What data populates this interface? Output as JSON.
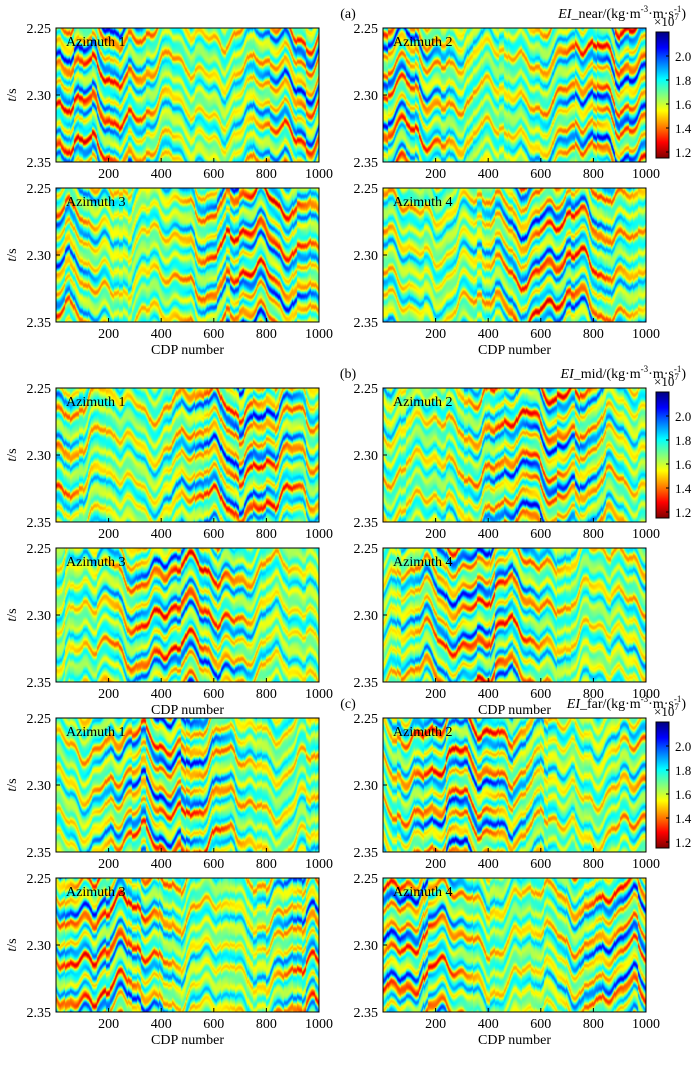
{
  "figure": {
    "xlabel": "CDP number",
    "ylabel_main": "t",
    "ylabel_unit": "/s",
    "colorbar_multiplier": "×10",
    "colorbar_exponent": "7"
  },
  "colors": {
    "colormap": [
      "#000080",
      "#0000ff",
      "#0080ff",
      "#00ffff",
      "#80ff80",
      "#ffff00",
      "#ff8000",
      "#ff0000",
      "#800000"
    ]
  },
  "chart_data": [
    {
      "type": "heatmap",
      "group": "(a)",
      "quantity_italic": "EI",
      "quantity_rest": "_near/(kg·m",
      "unit_exp1": "-3",
      "unit_mid": "·m·s",
      "unit_exp2": "-1",
      "unit_close": ")",
      "xlim": [
        0,
        1000
      ],
      "ylim": [
        2.25,
        2.35
      ],
      "xticks": [
        200,
        400,
        600,
        800,
        1000
      ],
      "xtick_labels": [
        "200",
        "400",
        "600",
        "800",
        "1000"
      ],
      "yticks": [
        2.25,
        2.3,
        2.35
      ],
      "ytick_labels": [
        "2.25",
        "2.30",
        "2.35"
      ],
      "clim": [
        1.15,
        2.2
      ],
      "cbar_ticks": [
        1.2,
        1.4,
        1.6,
        1.8,
        2.0
      ],
      "cbar_tick_labels": [
        "1.2",
        "1.4",
        "1.6",
        "1.8",
        "2.0"
      ],
      "panels": [
        {
          "title": "Azimuth 1",
          "seed": 11
        },
        {
          "title": "Azimuth 2",
          "seed": 12
        },
        {
          "title": "Azimuth 3",
          "seed": 13
        },
        {
          "title": "Azimuth 4",
          "seed": 14
        }
      ]
    },
    {
      "type": "heatmap",
      "group": "(b)",
      "quantity_italic": "EI",
      "quantity_rest": "_mid/(kg·m",
      "unit_exp1": "-3",
      "unit_mid": "·m·s",
      "unit_exp2": "-1",
      "unit_close": ")",
      "xlim": [
        0,
        1000
      ],
      "ylim": [
        2.25,
        2.35
      ],
      "xticks": [
        200,
        400,
        600,
        800,
        1000
      ],
      "xtick_labels": [
        "200",
        "400",
        "600",
        "800",
        "1000"
      ],
      "yticks": [
        2.25,
        2.3,
        2.35
      ],
      "ytick_labels": [
        "2.25",
        "2.30",
        "2.35"
      ],
      "clim": [
        1.15,
        2.2
      ],
      "cbar_ticks": [
        1.2,
        1.4,
        1.6,
        1.8,
        2.0
      ],
      "cbar_tick_labels": [
        "1.2",
        "1.4",
        "1.6",
        "1.8",
        "2.0"
      ],
      "panels": [
        {
          "title": "Azimuth 1",
          "seed": 21
        },
        {
          "title": "Azimuth 2",
          "seed": 22
        },
        {
          "title": "Azimuth 3",
          "seed": 23
        },
        {
          "title": "Azimuth 4",
          "seed": 24
        }
      ]
    },
    {
      "type": "heatmap",
      "group": "(c)",
      "quantity_italic": "EI",
      "quantity_rest": "_far/(kg·m",
      "unit_exp1": "-3",
      "unit_mid": "·m·s",
      "unit_exp2": "-1",
      "unit_close": ")",
      "xlim": [
        0,
        1000
      ],
      "ylim": [
        2.25,
        2.35
      ],
      "xticks": [
        200,
        400,
        600,
        800,
        1000
      ],
      "xtick_labels": [
        "200",
        "400",
        "600",
        "800",
        "1000"
      ],
      "yticks": [
        2.25,
        2.3,
        2.35
      ],
      "ytick_labels": [
        "2.25",
        "2.30",
        "2.35"
      ],
      "clim": [
        1.15,
        2.2
      ],
      "cbar_ticks": [
        1.2,
        1.4,
        1.6,
        1.8,
        2.0
      ],
      "cbar_tick_labels": [
        "1.2",
        "1.4",
        "1.6",
        "1.8",
        "2.0"
      ],
      "panels": [
        {
          "title": "Azimuth 1",
          "seed": 31
        },
        {
          "title": "Azimuth 2",
          "seed": 32
        },
        {
          "title": "Azimuth 3",
          "seed": 33
        },
        {
          "title": "Azimuth 4",
          "seed": 34
        }
      ]
    }
  ]
}
